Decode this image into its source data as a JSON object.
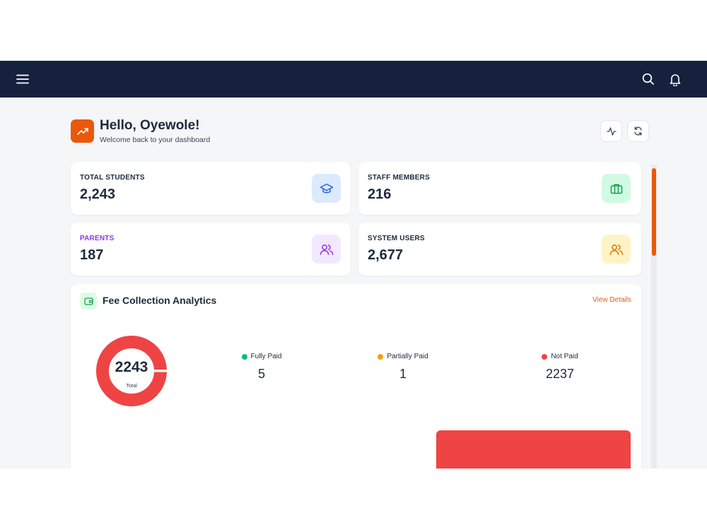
{
  "header": {
    "menu_icon": "hamburger-menu-icon",
    "search_icon": "search-icon",
    "notification_icon": "bell-icon",
    "background_color": "#16213e"
  },
  "greeting": {
    "title": "Hello, Oyewole!",
    "subtitle": "Welcome back to your dashboard",
    "badge_icon": "trending-up-icon",
    "badge_color": "#ea580c",
    "actions": [
      "activity-icon",
      "refresh-icon"
    ]
  },
  "stats": [
    {
      "label": "TOTAL STUDENTS",
      "value": "2,243",
      "icon": "graduation-cap-icon",
      "icon_bg": "#dbeafe",
      "icon_color": "#2563eb"
    },
    {
      "label": "STAFF MEMBERS",
      "value": "216",
      "icon": "briefcase-icon",
      "icon_bg": "#d1fae5",
      "icon_color": "#16a34a"
    },
    {
      "label": "PARENTS",
      "value": "187",
      "icon": "users-icon",
      "icon_bg": "#f3e8ff",
      "icon_color": "#9333ea",
      "label_color": "#9333ea"
    },
    {
      "label": "SYSTEM USERS",
      "value": "2,677",
      "icon": "users-icon",
      "icon_bg": "#fef3c7",
      "icon_color": "#d97706"
    }
  ],
  "fee": {
    "title": "Fee Collection Analytics",
    "title_icon": "wallet-icon",
    "view_details": "View Details",
    "donut": {
      "total": "2243",
      "total_label": "Total"
    },
    "legend": [
      {
        "label": "Fully Paid",
        "value": "5",
        "color": "#10b981"
      },
      {
        "label": "Partially Paid",
        "value": "1",
        "color": "#f59e0b"
      },
      {
        "label": "Not Paid",
        "value": "2237",
        "color": "#ef4444"
      }
    ]
  },
  "colors": {
    "accent": "#ea580c",
    "not_paid": "#ef4444"
  }
}
